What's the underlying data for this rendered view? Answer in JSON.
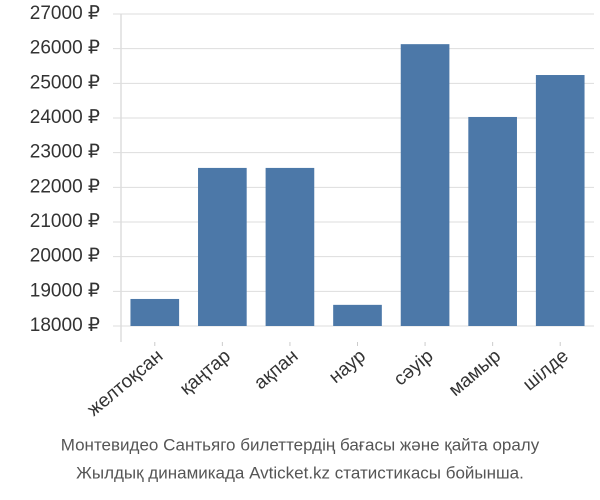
{
  "chart_data": {
    "type": "bar",
    "title": "Монтевидео Сантьяго билеттердің бағасы және қайта оралу",
    "subtitle": "Жылдық динамикада Avticket.kz статистикасы бойынша.",
    "categories": [
      "желтоқсан",
      "қаңтар",
      "ақпан",
      "наур",
      "сәуір",
      "мамыр",
      "шілде"
    ],
    "values": [
      18780,
      22560,
      22560,
      18610,
      26130,
      24030,
      25240
    ],
    "color": "#4c78a8",
    "ylim": [
      18000,
      27000
    ],
    "yticks": [
      {
        "value": 18000,
        "label": "18000 ₽"
      },
      {
        "value": 19000,
        "label": "19000 ₽"
      },
      {
        "value": 20000,
        "label": "20000 ₽"
      },
      {
        "value": 21000,
        "label": "21000 ₽"
      },
      {
        "value": 22000,
        "label": "22000 ₽"
      },
      {
        "value": 23000,
        "label": "23000 ₽"
      },
      {
        "value": 24000,
        "label": "24000 ₽"
      },
      {
        "value": 25000,
        "label": "25000 ₽"
      },
      {
        "value": 26000,
        "label": "26000 ₽"
      },
      {
        "value": 27000,
        "label": "27000 ₽"
      }
    ],
    "grid": true
  }
}
